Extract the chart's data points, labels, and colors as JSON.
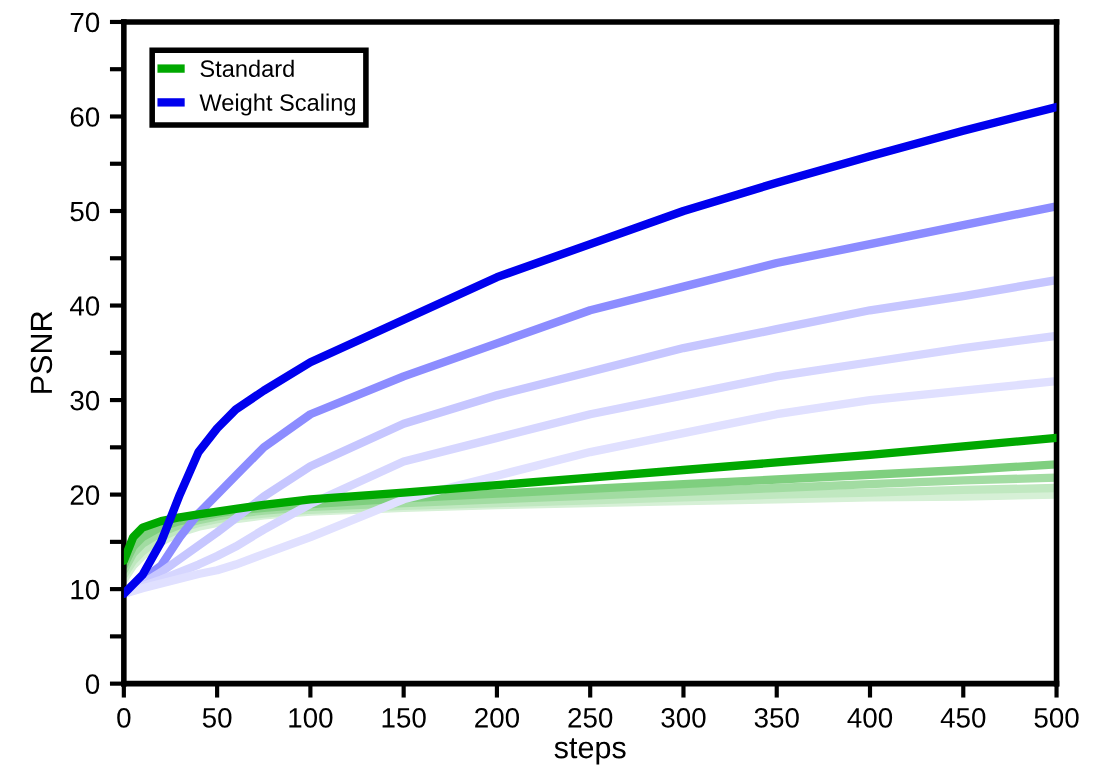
{
  "chart_data": {
    "type": "line",
    "xlabel": "steps",
    "ylabel": "PSNR",
    "x": [
      0,
      5,
      10,
      20,
      30,
      40,
      50,
      60,
      75,
      100,
      150,
      200,
      250,
      300,
      350,
      400,
      450,
      500
    ],
    "xlim": [
      0,
      500
    ],
    "xticks": [
      0,
      50,
      100,
      150,
      200,
      250,
      300,
      350,
      400,
      450,
      500
    ],
    "ylim": [
      0,
      70
    ],
    "yticks": [
      0,
      {
        "value": 5,
        "label": null
      },
      10,
      {
        "value": 15,
        "label": null
      },
      20,
      {
        "value": 25,
        "label": null
      },
      30,
      {
        "value": 35,
        "label": null
      },
      40,
      {
        "value": 45,
        "label": null
      },
      50,
      {
        "value": 55,
        "label": null
      },
      60,
      {
        "value": 65,
        "label": null
      },
      70
    ],
    "grid": false,
    "legend": "top left",
    "line_style": "solid",
    "marker": "none",
    "series": [
      {
        "color": "#d6f0d6",
        "values": [
          11,
          12.5,
          13.5,
          15,
          16,
          16.6,
          17,
          17.4,
          17.8,
          18.2,
          18.6,
          18.9,
          19.1,
          19.3,
          19.5,
          19.7,
          19.8,
          20.0
        ]
      },
      {
        "color": "#c0e8c0",
        "values": [
          11.5,
          13,
          14,
          15.5,
          16.4,
          17,
          17.4,
          17.7,
          18,
          18.4,
          18.8,
          19.1,
          19.4,
          19.7,
          20,
          20.2,
          20.5,
          20.7
        ]
      },
      {
        "color": "#a2dca2",
        "values": [
          12,
          13.8,
          14.8,
          16,
          16.8,
          17.3,
          17.7,
          18,
          18.3,
          18.7,
          19.1,
          19.5,
          19.9,
          20.3,
          20.7,
          21.1,
          21.5,
          21.8
        ]
      },
      {
        "color": "#7fcf7f",
        "values": [
          12.5,
          14.5,
          15.5,
          16.6,
          17.2,
          17.6,
          18,
          18.3,
          18.6,
          19,
          19.6,
          20.1,
          20.6,
          21.1,
          21.6,
          22.1,
          22.6,
          23.2
        ]
      },
      {
        "name": "Standard",
        "color": "#00a800",
        "values": [
          13,
          15.5,
          16.5,
          17.2,
          17.6,
          17.9,
          18.2,
          18.5,
          18.9,
          19.5,
          20.2,
          21,
          21.8,
          22.6,
          23.4,
          24.2,
          25.1,
          26
        ]
      },
      {
        "name": "Weight Scaling",
        "color": "#0000ee",
        "values": [
          9.5,
          10.5,
          11.5,
          15,
          20,
          24.5,
          27,
          29,
          31,
          34,
          38.5,
          43,
          46.5,
          50,
          53,
          55.8,
          58.5,
          61
        ]
      },
      {
        "color": "#8c8cff",
        "values": [
          9.5,
          10.3,
          11,
          12.5,
          15.5,
          18,
          20,
          22,
          25,
          28.5,
          32.5,
          36,
          39.5,
          42,
          44.5,
          46.5,
          48.5,
          50.5
        ]
      },
      {
        "color": "#c6c6ff",
        "values": [
          9.5,
          10,
          10.6,
          11.8,
          13.2,
          14.6,
          16,
          17.5,
          19.8,
          23,
          27.5,
          30.5,
          33,
          35.5,
          37.5,
          39.5,
          41,
          42.7
        ]
      },
      {
        "color": "#d6d6ff",
        "values": [
          9.5,
          9.9,
          10.3,
          11,
          11.8,
          12.6,
          13.5,
          14.5,
          16.3,
          19,
          23.5,
          26,
          28.5,
          30.5,
          32.5,
          34,
          35.5,
          36.8
        ]
      },
      {
        "color": "#e0e0ff",
        "values": [
          9.5,
          9.8,
          10.1,
          10.6,
          11.1,
          11.6,
          12,
          12.6,
          13.7,
          15.5,
          19.5,
          22,
          24.5,
          26.5,
          28.5,
          30,
          31,
          32
        ]
      }
    ]
  }
}
